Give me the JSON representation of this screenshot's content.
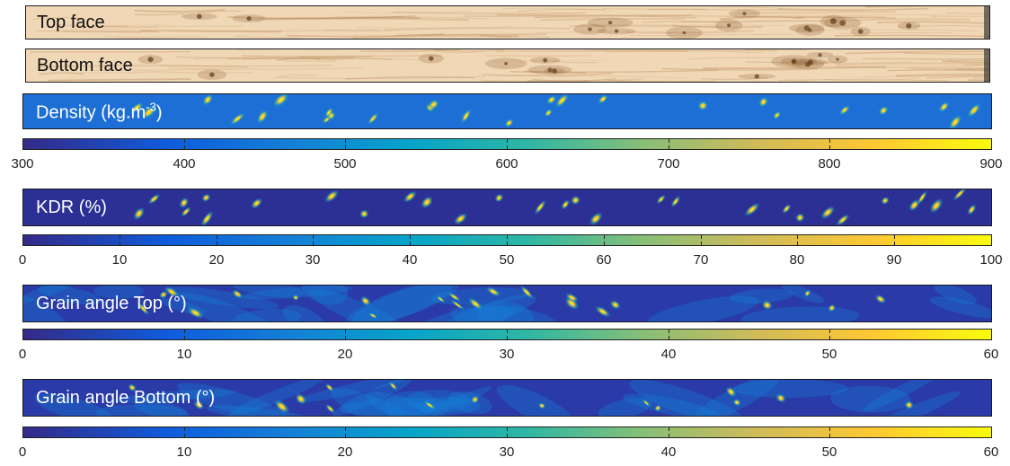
{
  "panels": [
    {
      "id": "top_face",
      "label": "Top face",
      "kind": "wood"
    },
    {
      "id": "bottom_face",
      "label": "Bottom face",
      "kind": "wood"
    },
    {
      "id": "density",
      "label": "Density (kg.m",
      "label_sup": "-3",
      "label_end": ")",
      "kind": "map",
      "colorbar": {
        "min": 300,
        "max": 900,
        "tick_labels": [
          "300",
          "400",
          "500",
          "600",
          "700",
          "800",
          "900"
        ]
      }
    },
    {
      "id": "kdr",
      "label": "KDR (%)",
      "kind": "map",
      "colorbar": {
        "min": 0,
        "max": 100,
        "tick_labels": [
          "0",
          "10",
          "20",
          "30",
          "40",
          "50",
          "60",
          "70",
          "80",
          "90",
          "100"
        ]
      }
    },
    {
      "id": "grain_top",
      "label": "Grain angle Top (°)",
      "kind": "map",
      "colorbar": {
        "min": 0,
        "max": 60,
        "tick_labels": [
          "0",
          "10",
          "20",
          "30",
          "40",
          "50",
          "60"
        ]
      }
    },
    {
      "id": "grain_bottom",
      "label": "Grain angle Bottom (°)",
      "kind": "map",
      "colorbar": {
        "min": 0,
        "max": 60,
        "tick_labels": [
          "0",
          "10",
          "20",
          "30",
          "40",
          "50",
          "60"
        ]
      }
    }
  ],
  "colormap": "parula",
  "colors": {
    "wood_light": "#f0d7b6",
    "wood_dark": "#b98e5e",
    "map_bg_density": "#1d6fd6",
    "map_bg_kdr": "#2c2f93",
    "map_bg_grain": "#2a3aa6"
  }
}
